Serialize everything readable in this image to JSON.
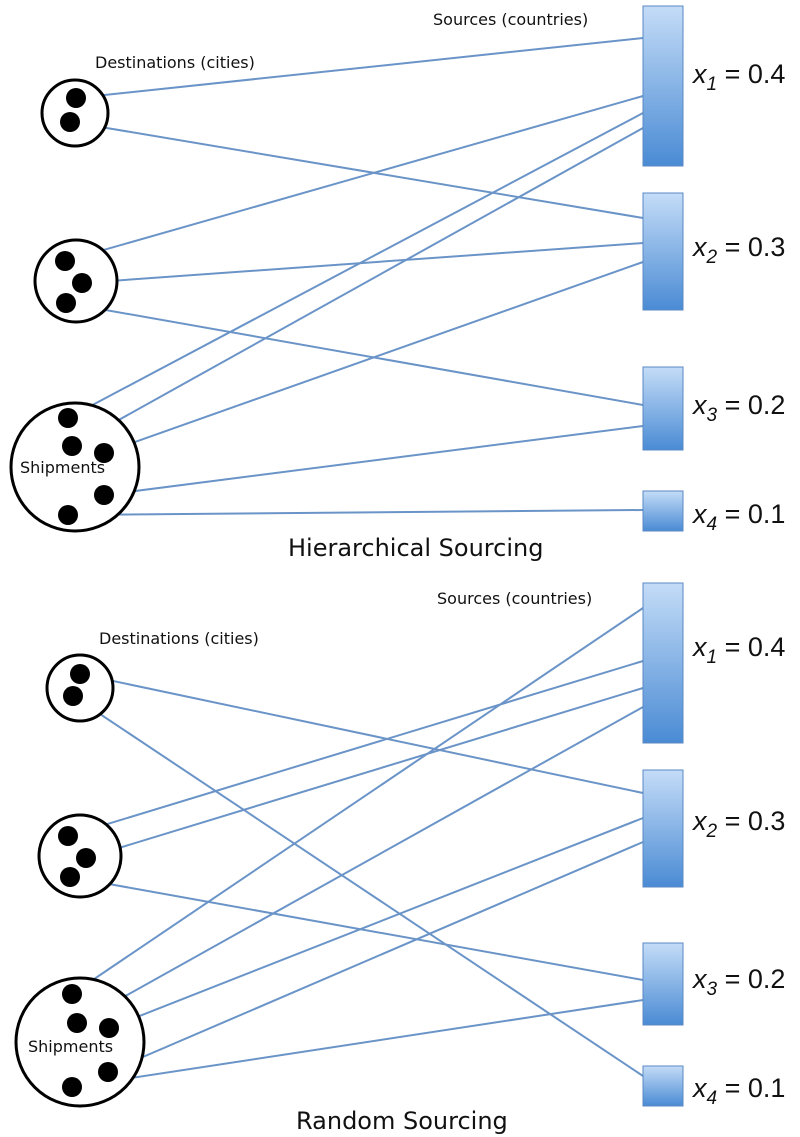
{
  "panels": [
    {
      "id": "hierarchical",
      "title": "Hierarchical Sourcing",
      "destinations_label": "Destinations (cities)",
      "sources_label": "Sources (countries)",
      "shipments_label": "Shipments",
      "sources": [
        {
          "var": "x",
          "sub": "1",
          "value": "0.4"
        },
        {
          "var": "x",
          "sub": "2",
          "value": "0.3"
        },
        {
          "var": "x",
          "sub": "3",
          "value": "0.2"
        },
        {
          "var": "x",
          "sub": "4",
          "value": "0.1"
        }
      ]
    },
    {
      "id": "random",
      "title": "Random Sourcing",
      "destinations_label": "Destinations (cities)",
      "sources_label": "Sources (countries)",
      "shipments_label": "Shipments",
      "sources": [
        {
          "var": "x",
          "sub": "1",
          "value": "0.4"
        },
        {
          "var": "x",
          "sub": "2",
          "value": "0.3"
        },
        {
          "var": "x",
          "sub": "3",
          "value": "0.2"
        },
        {
          "var": "x",
          "sub": "4",
          "value": "0.1"
        }
      ]
    }
  ],
  "colors": {
    "edge": "#6a94c8",
    "source_gradient_top": "#c4dcf7",
    "source_gradient_bottom": "#4a8bd4",
    "source_stroke": "#5a89c4"
  }
}
